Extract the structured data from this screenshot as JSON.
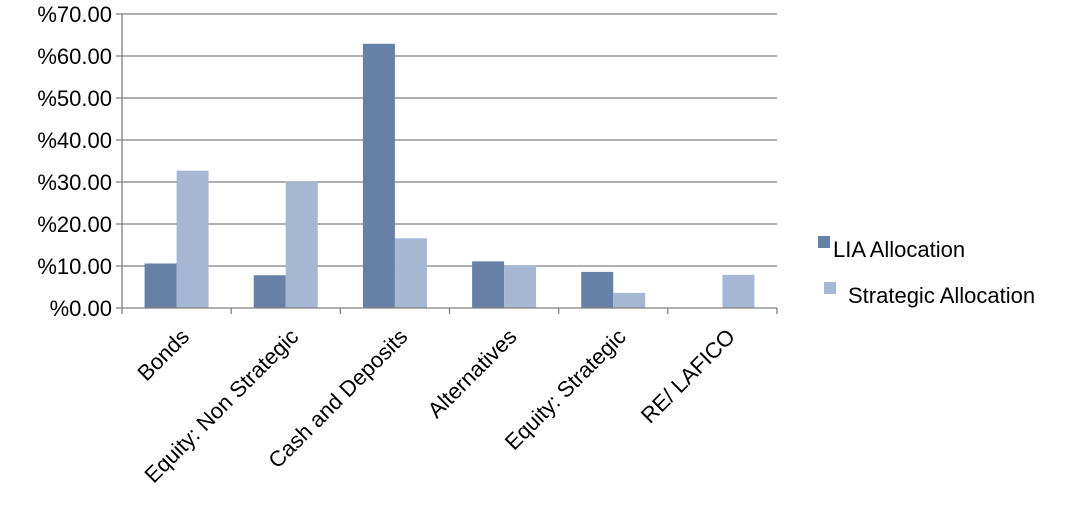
{
  "chart_data": {
    "type": "bar",
    "title": "",
    "xlabel": "",
    "ylabel": "",
    "ylim": [
      0,
      70
    ],
    "yticks": [
      0,
      10,
      20,
      30,
      40,
      50,
      60,
      70
    ],
    "ytick_labels": [
      "%0.00",
      "%10.00",
      "%20.00",
      "%30.00",
      "%40.00",
      "%50.00",
      "%60.00",
      "%70.00"
    ],
    "grid": true,
    "legend_position": "right",
    "categories": [
      "Bonds",
      "Equity: Non Strategic",
      "Cash and Deposits",
      "Alternatives",
      "Equity: Strategic",
      "RE/ LAFICO"
    ],
    "series": [
      {
        "name": "LIA Allocation",
        "color": "#6781a6",
        "values": [
          10.6,
          7.8,
          62.9,
          11.1,
          8.6,
          0
        ]
      },
      {
        "name": "Strategic Allocation",
        "color": "#a6b7d4",
        "values": [
          32.7,
          30.2,
          16.6,
          10.2,
          3.6,
          7.9
        ]
      }
    ],
    "legend": [
      {
        "label": "LIA Allocation",
        "marker": "■"
      },
      {
        "label": "Strategic Allocation",
        "marker": "■"
      }
    ]
  }
}
